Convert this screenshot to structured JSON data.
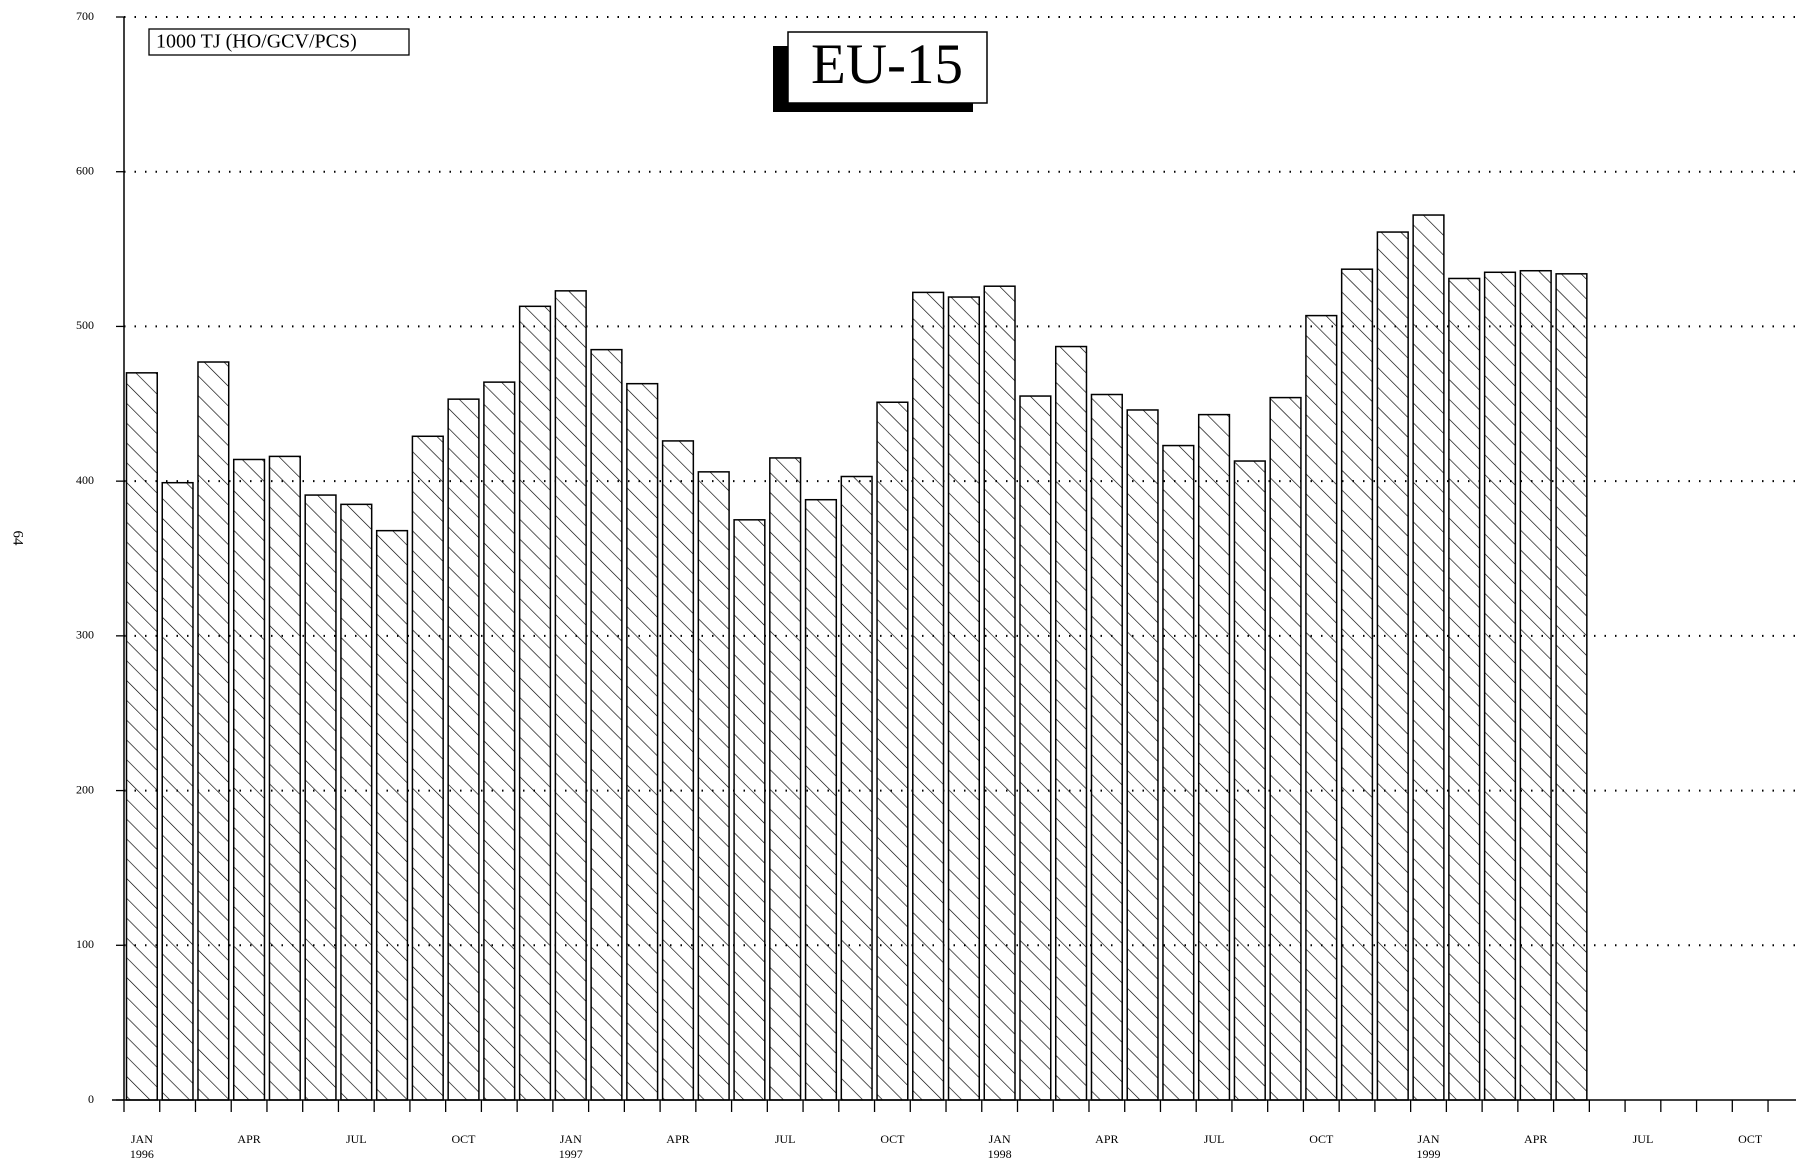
{
  "chart_data": {
    "type": "bar",
    "title": "EU-15",
    "unit_label": "1000 TJ (HO/GCV/PCS)",
    "page_number": "64",
    "categories": [
      "JAN 1996",
      null,
      null,
      "APR",
      null,
      null,
      "JUL",
      null,
      null,
      "OCT",
      null,
      null,
      "JAN 1997",
      null,
      null,
      "APR",
      null,
      null,
      "JUL",
      null,
      null,
      "OCT",
      null,
      null,
      "JAN 1998",
      null,
      null,
      "APR",
      null,
      null,
      "JUL",
      null,
      null,
      "OCT",
      null,
      null,
      "JAN 1999",
      null,
      null,
      "APR",
      null,
      null,
      "JUL",
      null,
      null,
      "OCT",
      null,
      null
    ],
    "values": [
      470,
      399,
      477,
      414,
      416,
      391,
      385,
      368,
      429,
      453,
      464,
      513,
      523,
      485,
      463,
      426,
      406,
      375,
      415,
      388,
      403,
      451,
      522,
      519,
      526,
      455,
      487,
      456,
      446,
      423,
      443,
      413,
      454,
      507,
      537,
      561,
      572,
      531,
      535,
      536,
      534,
      null,
      null,
      null,
      null,
      null,
      null,
      null
    ],
    "color": "#ffffff",
    "ylim": [
      0,
      700
    ],
    "yticks": [
      0,
      100,
      200,
      300,
      400,
      500,
      600,
      700
    ],
    "grid": true
  }
}
